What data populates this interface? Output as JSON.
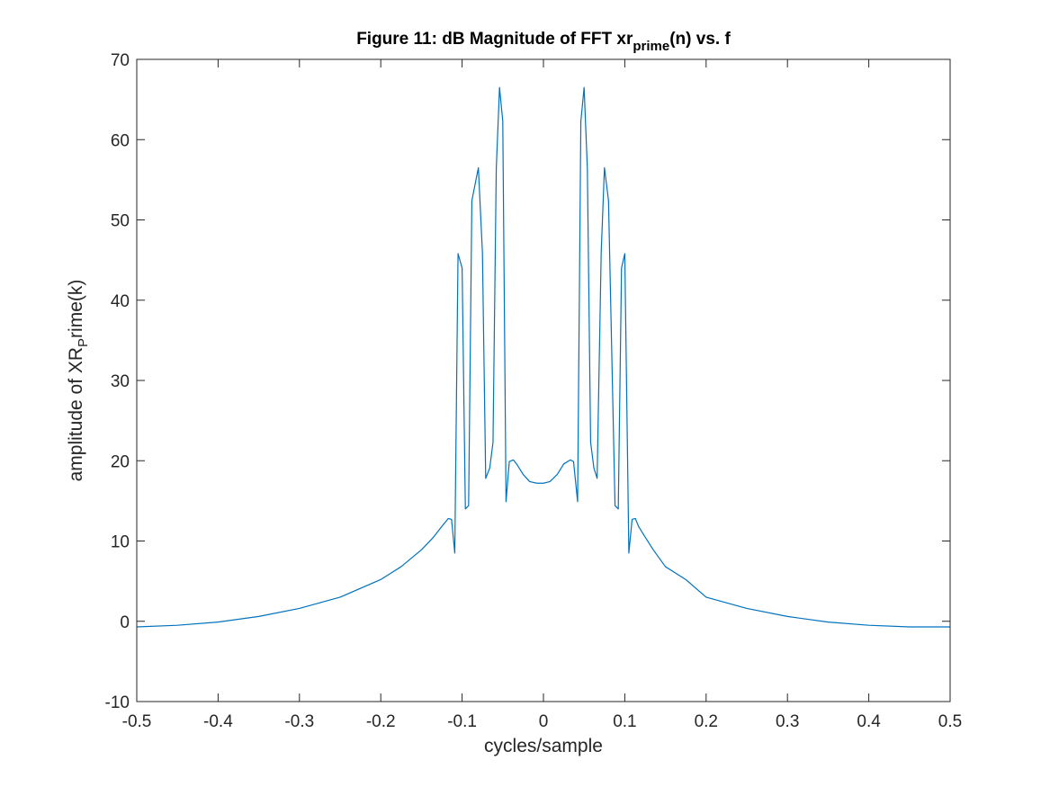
{
  "chart_data": {
    "type": "line",
    "title": {
      "main": "Figure 11: dB Magnitude of FFT xr",
      "sub": "prime",
      "rest": "(n) vs. f"
    },
    "xlabel": "cycles/sample",
    "ylabel": {
      "main": "amplitude of XR",
      "sub": "P",
      "rest": "rime(k)"
    },
    "xlim": [
      -0.5,
      0.5
    ],
    "ylim": [
      -10,
      70
    ],
    "xticks": [
      -0.5,
      -0.4,
      -0.3,
      -0.2,
      -0.1,
      0,
      0.1,
      0.2,
      0.3,
      0.4,
      0.5
    ],
    "xtick_labels": [
      "-0.5",
      "-0.4",
      "-0.3",
      "-0.2",
      "-0.1",
      "0",
      "0.1",
      "0.2",
      "0.3",
      "0.4",
      "0.5"
    ],
    "yticks": [
      -10,
      0,
      10,
      20,
      30,
      40,
      50,
      60,
      70
    ],
    "ytick_labels": [
      "-10",
      "0",
      "10",
      "20",
      "30",
      "40",
      "50",
      "60",
      "70"
    ],
    "grid": false,
    "line_color": "#0072bd",
    "series": [
      {
        "x": [
          -0.5,
          -0.45,
          -0.4,
          -0.35,
          -0.3,
          -0.25,
          -0.2,
          -0.175,
          -0.15,
          -0.135,
          -0.125,
          -0.117,
          -0.113,
          -0.109,
          -0.105,
          -0.1,
          -0.096,
          -0.092,
          -0.088,
          -0.08,
          -0.075,
          -0.071,
          -0.066,
          -0.062,
          -0.058,
          -0.054,
          -0.05,
          -0.046,
          -0.042,
          -0.037,
          -0.033,
          -0.025,
          -0.017,
          -0.008,
          0,
          0.008,
          0.017,
          0.025,
          0.033,
          0.037,
          0.042,
          0.046,
          0.05,
          0.054,
          0.058,
          0.062,
          0.066,
          0.071,
          0.075,
          0.08,
          0.088,
          0.092,
          0.096,
          0.1,
          0.105,
          0.109,
          0.113,
          0.117,
          0.125,
          0.135,
          0.15,
          0.175,
          0.2,
          0.25,
          0.3,
          0.35,
          0.4,
          0.45,
          0.5
        ],
        "y": [
          -0.7,
          -0.5,
          -0.1,
          0.6,
          1.6,
          3.0,
          5.2,
          6.8,
          8.9,
          10.5,
          11.8,
          12.8,
          12.7,
          8.5,
          45.8,
          44.0,
          14.0,
          14.4,
          52.4,
          56.5,
          45.9,
          17.8,
          19.1,
          22.3,
          56.4,
          66.5,
          62.3,
          14.9,
          19.9,
          20.1,
          19.6,
          18.3,
          17.4,
          17.2,
          17.2,
          17.4,
          18.3,
          19.6,
          20.1,
          19.9,
          14.9,
          62.3,
          66.5,
          56.4,
          22.3,
          19.1,
          17.8,
          45.9,
          56.5,
          52.4,
          14.4,
          14.0,
          44.0,
          45.8,
          8.5,
          12.7,
          12.8,
          11.8,
          10.5,
          8.9,
          6.8,
          5.2,
          3.0,
          1.6,
          0.6,
          -0.1,
          -0.5,
          -0.7,
          -0.7
        ]
      }
    ]
  }
}
